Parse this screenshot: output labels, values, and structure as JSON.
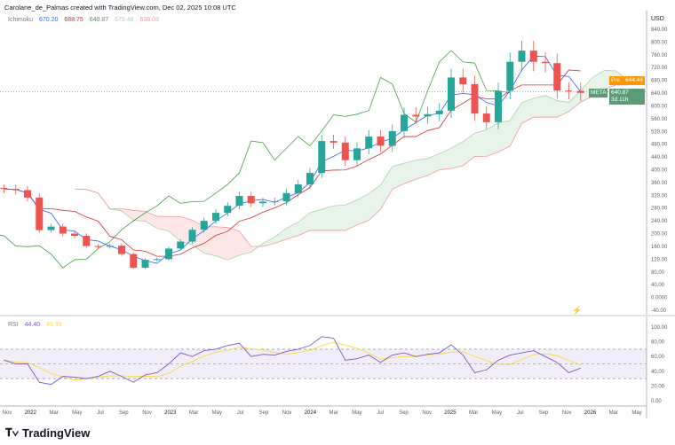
{
  "header": {
    "attribution": "Carolane_de_Palmas created with TradingView.com, Dec 02, 2025 10:08 UTC"
  },
  "legend": {
    "name": "Ichimoku",
    "values": [
      "670.20",
      "688.75",
      "640.87",
      "679.48",
      "638.03"
    ],
    "colors": [
      "#2962ff",
      "#d32f2f",
      "#43a047",
      "#a5d6a7",
      "#ef9a9a"
    ]
  },
  "rsi_legend": {
    "name": "RSI",
    "values": [
      "44.40",
      "49.99"
    ],
    "colors": [
      "#7e57c2",
      "#fdd835"
    ]
  },
  "currency": "USD",
  "price_tags": {
    "pre_label": "Pre",
    "pre_value": "644.44",
    "symbol": "META",
    "last_value": "640.87",
    "countdown": "3d 11h"
  },
  "branding": {
    "logo_text": "TradingView"
  },
  "colors": {
    "up": "#26a69a",
    "down": "#ef5350",
    "pre": "#ff9800",
    "last": "#4caf50",
    "rsi": "#7e57c2",
    "rsi_ma": "#fdd835"
  },
  "chart_data": [
    {
      "type": "candlestick",
      "title": "",
      "ylim": [
        -40,
        840
      ],
      "yticks": [
        "840.00",
        "800.00",
        "760.00",
        "720.00",
        "680.00",
        "640.00",
        "600.00",
        "560.00",
        "520.00",
        "480.00",
        "440.00",
        "400.00",
        "360.00",
        "320.00",
        "280.00",
        "240.00",
        "200.00",
        "160.00",
        "120.00",
        "80.00",
        "40.00",
        "0.0000",
        "-40.00"
      ],
      "xticks": [
        "Nov",
        "2022",
        "Mar",
        "May",
        "Jul",
        "Sep",
        "Nov",
        "2023",
        "Mar",
        "May",
        "Jul",
        "Sep",
        "Nov",
        "2024",
        "Mar",
        "May",
        "Jul",
        "Sep",
        "Nov",
        "2025",
        "Mar",
        "May",
        "Jul",
        "Sep",
        "Nov",
        "2026",
        "Mar",
        "May"
      ],
      "x": [
        "2021-11",
        "2021-12",
        "2022-01",
        "2022-02",
        "2022-03",
        "2022-04",
        "2022-05",
        "2022-06",
        "2022-07",
        "2022-08",
        "2022-09",
        "2022-10",
        "2022-11",
        "2022-12",
        "2023-01",
        "2023-02",
        "2023-03",
        "2023-04",
        "2023-05",
        "2023-06",
        "2023-07",
        "2023-08",
        "2023-09",
        "2023-10",
        "2023-11",
        "2023-12",
        "2024-01",
        "2024-02",
        "2024-03",
        "2024-04",
        "2024-05",
        "2024-06",
        "2024-07",
        "2024-08",
        "2024-09",
        "2024-10",
        "2024-11",
        "2024-12",
        "2025-01",
        "2025-02",
        "2025-03",
        "2025-04",
        "2025-05",
        "2025-06",
        "2025-07",
        "2025-08",
        "2025-09",
        "2025-10",
        "2025-11",
        "2025-12"
      ],
      "close": [
        340,
        336,
        313,
        211,
        222,
        200,
        193,
        161,
        159,
        162,
        136,
        93,
        118,
        120,
        153,
        175,
        212,
        240,
        265,
        287,
        318,
        295,
        300,
        301,
        327,
        354,
        390,
        490,
        485,
        430,
        467,
        504,
        475,
        521,
        572,
        567,
        574,
        585,
        689,
        668,
        576,
        549,
        647,
        738,
        773,
        738,
        734,
        648,
        647,
        640.87
      ],
      "indicator": "Ichimoku",
      "reference_line": 644.44
    },
    {
      "type": "line",
      "title": "RSI",
      "ylim": [
        -5,
        110
      ],
      "yticks": [
        "100.00",
        "80.00",
        "60.00",
        "40.00",
        "20.00",
        "0.00"
      ],
      "bands": [
        30,
        50,
        70
      ],
      "x": [
        "2021-11",
        "2021-12",
        "2022-01",
        "2022-02",
        "2022-03",
        "2022-04",
        "2022-05",
        "2022-06",
        "2022-07",
        "2022-08",
        "2022-09",
        "2022-10",
        "2022-11",
        "2022-12",
        "2023-01",
        "2023-02",
        "2023-03",
        "2023-04",
        "2023-05",
        "2023-06",
        "2023-07",
        "2023-08",
        "2023-09",
        "2023-10",
        "2023-11",
        "2023-12",
        "2024-01",
        "2024-02",
        "2024-03",
        "2024-04",
        "2024-05",
        "2024-06",
        "2024-07",
        "2024-08",
        "2024-09",
        "2024-10",
        "2024-11",
        "2024-12",
        "2025-01",
        "2025-02",
        "2025-03",
        "2025-04",
        "2025-05",
        "2025-06",
        "2025-07",
        "2025-08",
        "2025-09",
        "2025-10",
        "2025-11",
        "2025-12"
      ],
      "series": [
        {
          "name": "RSI",
          "values": [
            55,
            50,
            50,
            25,
            22,
            33,
            32,
            30,
            33,
            40,
            33,
            25,
            35,
            38,
            50,
            65,
            60,
            68,
            70,
            75,
            78,
            60,
            63,
            62,
            67,
            70,
            75,
            87,
            85,
            55,
            57,
            62,
            52,
            62,
            65,
            60,
            63,
            65,
            76,
            62,
            38,
            42,
            55,
            62,
            65,
            68,
            60,
            52,
            38,
            44.4
          ]
        }
      ]
    }
  ]
}
